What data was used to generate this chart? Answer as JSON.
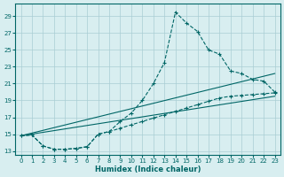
{
  "xlabel": "Humidex (Indice chaleur)",
  "ylabel": "",
  "background_color": "#d8eef0",
  "grid_color": "#aacdd4",
  "line_color": "#006666",
  "xlim": [
    -0.5,
    23.5
  ],
  "ylim": [
    12.5,
    30.5
  ],
  "yticks": [
    13,
    15,
    17,
    19,
    21,
    23,
    25,
    27,
    29
  ],
  "xticks": [
    0,
    1,
    2,
    3,
    4,
    5,
    6,
    7,
    8,
    9,
    10,
    11,
    12,
    13,
    14,
    15,
    16,
    17,
    18,
    19,
    20,
    21,
    22,
    23
  ],
  "curve_main_x": [
    0,
    1,
    2,
    3,
    4,
    5,
    6,
    7,
    8,
    9,
    10,
    11,
    12,
    13,
    14,
    15,
    16,
    17,
    18,
    19,
    20,
    21,
    22,
    23
  ],
  "curve_main_y": [
    14.8,
    14.9,
    13.6,
    13.2,
    13.2,
    13.3,
    13.5,
    15.0,
    15.3,
    16.5,
    17.5,
    19.0,
    21.0,
    23.5,
    29.5,
    28.2,
    27.2,
    25.0,
    24.5,
    22.5,
    22.2,
    21.5,
    21.3,
    20.0
  ],
  "curve_line1_x": [
    0,
    1,
    2,
    3,
    4,
    5,
    6,
    7,
    8,
    9,
    10,
    11,
    12,
    13,
    14,
    15,
    16,
    17,
    18,
    19,
    20,
    21,
    22,
    23
  ],
  "curve_line1_y": [
    14.8,
    14.9,
    13.6,
    13.2,
    13.2,
    13.3,
    13.5,
    15.0,
    15.3,
    15.7,
    16.1,
    16.5,
    16.9,
    17.3,
    17.7,
    18.1,
    18.5,
    18.9,
    19.3,
    19.5,
    19.6,
    19.7,
    19.8,
    19.9
  ],
  "curve_line2_x": [
    0,
    23
  ],
  "curve_line2_y": [
    14.8,
    22.2
  ],
  "curve_line3_x": [
    0,
    23
  ],
  "curve_line3_y": [
    14.8,
    19.5
  ]
}
